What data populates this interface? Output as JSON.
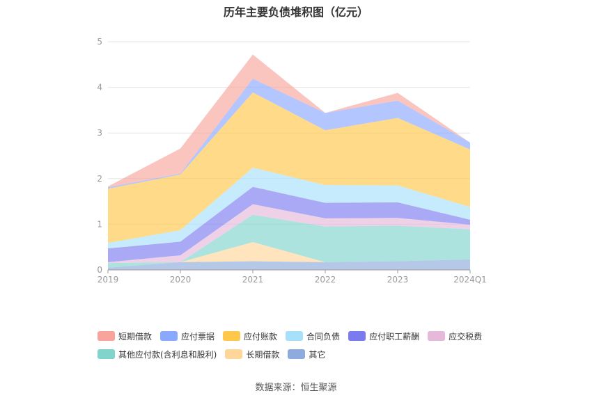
{
  "chart_data": {
    "type": "area",
    "title": "历年主要负债堆积图（亿元）",
    "source": "数据来源：恒生聚源",
    "categories": [
      "2019",
      "2020",
      "2021",
      "2022",
      "2023",
      "2024Q1"
    ],
    "ylim": [
      0,
      5
    ],
    "yticks": [
      "0",
      "1",
      "2",
      "3",
      "4",
      "5"
    ],
    "grid": true,
    "stacked": true,
    "legend_position": "bottom",
    "series": [
      {
        "name": "其它",
        "color": "#8faadc",
        "values": [
          0.05,
          0.17,
          0.19,
          0.17,
          0.19,
          0.23
        ]
      },
      {
        "name": "长期借款",
        "color": "#ffd699",
        "values": [
          0.0,
          0.0,
          0.42,
          0.0,
          0.0,
          0.0
        ]
      },
      {
        "name": "其他应付款(含利息和股利)",
        "color": "#80d4cc",
        "values": [
          0.1,
          0.0,
          0.6,
          0.78,
          0.78,
          0.66
        ]
      },
      {
        "name": "应交税费",
        "color": "#e6b8da",
        "values": [
          0.02,
          0.15,
          0.23,
          0.18,
          0.17,
          0.1
        ]
      },
      {
        "name": "应付职工薪酬",
        "color": "#7b7bf0",
        "values": [
          0.3,
          0.3,
          0.38,
          0.34,
          0.34,
          0.11
        ]
      },
      {
        "name": "合同负债",
        "color": "#a6e0fa",
        "values": [
          0.12,
          0.25,
          0.42,
          0.39,
          0.37,
          0.28
        ]
      },
      {
        "name": "应付账款",
        "color": "#ffc84a",
        "values": [
          1.19,
          1.22,
          1.65,
          1.2,
          1.48,
          1.26
        ]
      },
      {
        "name": "应付票据",
        "color": "#8aa8ff",
        "values": [
          0.03,
          0.02,
          0.3,
          0.38,
          0.38,
          0.15
        ]
      },
      {
        "name": "短期借款",
        "color": "#f8a49c",
        "values": [
          0.02,
          0.55,
          0.53,
          0.0,
          0.17,
          0.0
        ]
      }
    ],
    "legend_order": [
      "短期借款",
      "应付票据",
      "应付账款",
      "合同负债",
      "应付职工薪酬",
      "应交税费",
      "其他应付款(含利息和股利)",
      "长期借款",
      "其它"
    ]
  }
}
